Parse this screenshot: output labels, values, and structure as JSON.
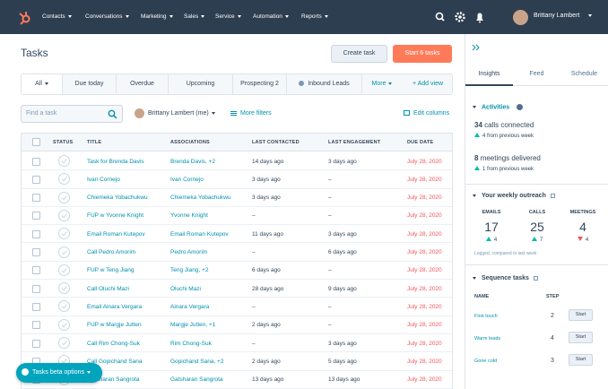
{
  "nav": {
    "menu": [
      "Contacts",
      "Conversations",
      "Marketing",
      "Sales",
      "Service",
      "Automation",
      "Reports"
    ],
    "user": "Brittany Lambert"
  },
  "header": {
    "title": "Tasks",
    "buttons": [
      "Create task",
      "Start 6 tasks"
    ]
  },
  "tabs": [
    "All",
    "Due today",
    "Overdue",
    "Upcoming",
    "Prospecting 2",
    "Inbound Leads",
    "More",
    "+ Add view"
  ],
  "filters": {
    "search_placeholder": "Find a task",
    "owner": "Brittany Lambert (me)",
    "more_filters": "More filters",
    "edit_columns": "Edit columns"
  },
  "table": {
    "columns": [
      "STATUS",
      "TITLE",
      "ASSOCIATIONS",
      "LAST CONTACTED",
      "LAST ENGAGEMENT",
      "DUE DATE"
    ],
    "rows": [
      [
        "Task for Brenda Davis",
        "Brenda Davis, +2",
        "14 days ago",
        "3 days ago",
        "July 28, 2020"
      ],
      [
        "Ivan Cornejo",
        "Ivan Cornejo",
        "3 days ago",
        "–",
        "July 28, 2020"
      ],
      [
        "Chiemeka Yobachukwu",
        "Chiemeka Yobachukwu",
        "3 days ago",
        "–",
        "July 28, 2020"
      ],
      [
        "FUP w Yvonne Knight",
        "Yvonne Knight",
        "–",
        "–",
        "July 28, 2020"
      ],
      [
        "Email Roman Kutepov",
        "Email Roman Kutepov",
        "11 days ago",
        "3 days ago",
        "July 28, 2020"
      ],
      [
        "Call Pedro Amorim",
        "Pedro Amorim",
        "–",
        "6 days ago",
        "July 28, 2020"
      ],
      [
        "FUP w Teng Jiang",
        "Teng Jiang, +2",
        "6 days ago",
        "–",
        "July 28, 2020"
      ],
      [
        "Call Oluchi Mazi",
        "Oluchi Mazi",
        "28 days ago",
        "9 days ago",
        "July 28, 2020"
      ],
      [
        "Email Ainara Vergara",
        "Ainara Vergara",
        "–",
        "–",
        "July 28, 2020"
      ],
      [
        "FUP w Margje Jutten",
        "Margje Jutten, +1",
        "2 days ago",
        "–",
        "July 28, 2020"
      ],
      [
        "Call Rim Chong-Suk",
        "Rim Chong-Suk",
        "–",
        "3 days ago",
        "July 28, 2020"
      ],
      [
        "Call Gopichand Sana",
        "Gopichand Sana, +2",
        "2 days ago",
        "5 days ago",
        "July 28, 2020"
      ],
      [
        "Gatsharan Sangrota",
        "Gatsharan Sangrota",
        "13 days ago",
        "13 days ago",
        "July 28, 2020"
      ]
    ]
  },
  "beta_button": "Tasks beta options",
  "sidebar": {
    "tabs": [
      "Insights",
      "Feed",
      "Schedule"
    ],
    "activities": {
      "title": "Activities",
      "items": [
        {
          "count": "34",
          "label": "calls connected",
          "change": "4 from previous week"
        },
        {
          "count": "8",
          "label": "meetings delivered",
          "change": "1 from previous week"
        }
      ]
    },
    "outreach": {
      "title": "Your weekly outreach",
      "columns": [
        {
          "label": "EMAILS",
          "value": "17",
          "change": "4",
          "direction": "up"
        },
        {
          "label": "CALLS",
          "value": "25",
          "change": "7",
          "direction": "up"
        },
        {
          "label": "MEETINGS",
          "value": "4",
          "change": "4",
          "direction": "down"
        }
      ],
      "note": "Logged, compared to last week"
    },
    "sequence": {
      "title": "Sequence tasks",
      "columns": [
        "NAME",
        "STEP"
      ],
      "rows": [
        {
          "name": "First touch",
          "step": "2",
          "action": "Start"
        },
        {
          "name": "Warm leads",
          "step": "4",
          "action": "Start"
        },
        {
          "name": "Gone cold",
          "step": "3",
          "action": "Start"
        }
      ]
    }
  }
}
